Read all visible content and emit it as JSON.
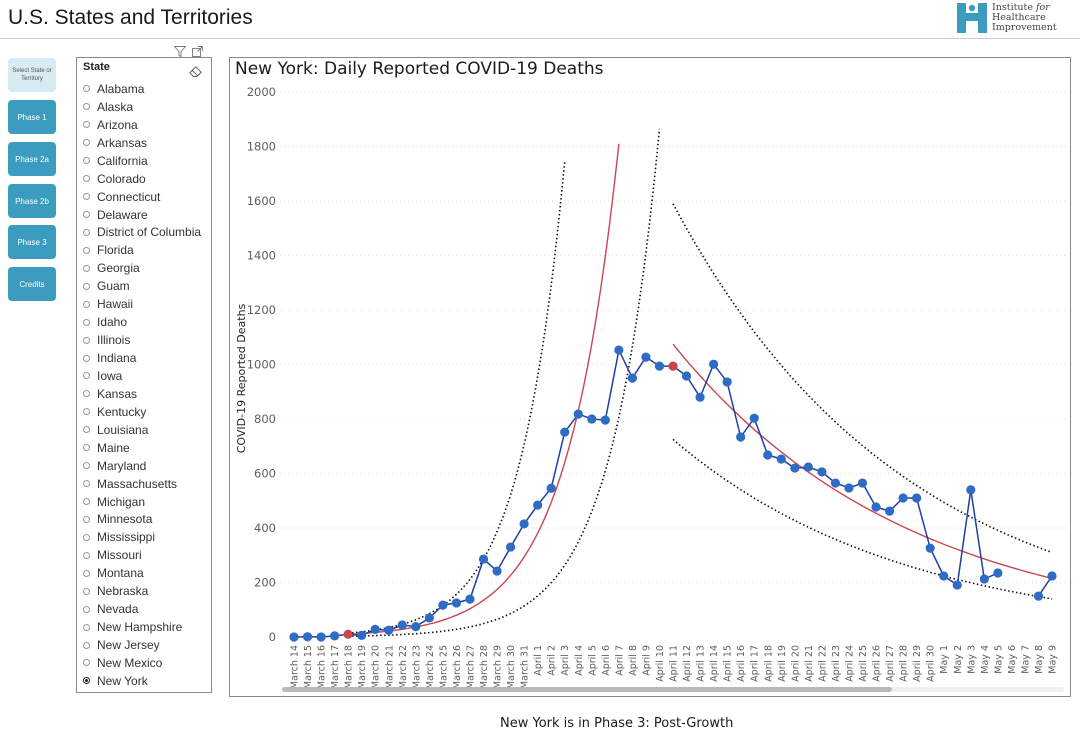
{
  "header": {
    "title": "U.S. States and Territories",
    "logo": {
      "line1": "Institute",
      "line1_italic": "for",
      "line2": "Healthcare",
      "line3": "Improvement",
      "color": "#3b9cbf"
    }
  },
  "nav": {
    "buttons": [
      {
        "label": "Select State or Territory",
        "style": "light"
      },
      {
        "label": "Phase 1"
      },
      {
        "label": "Phase 2a"
      },
      {
        "label": "Phase 2b"
      },
      {
        "label": "Phase 3"
      },
      {
        "label": "Credits"
      }
    ]
  },
  "slicer": {
    "header": "State",
    "icons": [
      "filter-icon",
      "focus-mode-icon",
      "eraser-icon"
    ],
    "items": [
      {
        "label": "Alabama",
        "checked": false
      },
      {
        "label": "Alaska",
        "checked": false
      },
      {
        "label": "Arizona",
        "checked": false
      },
      {
        "label": "Arkansas",
        "checked": false
      },
      {
        "label": "California",
        "checked": false
      },
      {
        "label": "Colorado",
        "checked": false
      },
      {
        "label": "Connecticut",
        "checked": false
      },
      {
        "label": "Delaware",
        "checked": false
      },
      {
        "label": "District of Columbia",
        "checked": false
      },
      {
        "label": "Florida",
        "checked": false
      },
      {
        "label": "Georgia",
        "checked": false
      },
      {
        "label": "Guam",
        "checked": false
      },
      {
        "label": "Hawaii",
        "checked": false
      },
      {
        "label": "Idaho",
        "checked": false
      },
      {
        "label": "Illinois",
        "checked": false
      },
      {
        "label": "Indiana",
        "checked": false
      },
      {
        "label": "Iowa",
        "checked": false
      },
      {
        "label": "Kansas",
        "checked": false
      },
      {
        "label": "Kentucky",
        "checked": false
      },
      {
        "label": "Louisiana",
        "checked": false
      },
      {
        "label": "Maine",
        "checked": false
      },
      {
        "label": "Maryland",
        "checked": false
      },
      {
        "label": "Massachusetts",
        "checked": false
      },
      {
        "label": "Michigan",
        "checked": false
      },
      {
        "label": "Minnesota",
        "checked": false
      },
      {
        "label": "Mississippi",
        "checked": false
      },
      {
        "label": "Missouri",
        "checked": false
      },
      {
        "label": "Montana",
        "checked": false
      },
      {
        "label": "Nebraska",
        "checked": false
      },
      {
        "label": "Nevada",
        "checked": false
      },
      {
        "label": "New Hampshire",
        "checked": false
      },
      {
        "label": "New Jersey",
        "checked": false
      },
      {
        "label": "New Mexico",
        "checked": false
      },
      {
        "label": "New York",
        "checked": true
      }
    ]
  },
  "footer": {
    "status": "New York is in Phase 3: Post-Growth"
  },
  "chart_data": {
    "type": "line",
    "title": "New York: Daily Reported COVID-19 Deaths",
    "xlabel": "",
    "ylabel": "COVID-19 Reported Deaths",
    "ylim": [
      0,
      2000
    ],
    "yticks": [
      0,
      200,
      400,
      600,
      800,
      1000,
      1200,
      1400,
      1600,
      1800,
      2000
    ],
    "grid": true,
    "colors": {
      "series": "#1f3fa3",
      "marker": "#2e6bc4",
      "highlight": "#c8474f",
      "fit": "#c8474f",
      "limits": "#111111"
    },
    "categories": [
      "March 14",
      "March 15",
      "March 16",
      "March 17",
      "March 18",
      "March 19",
      "March 20",
      "March 21",
      "March 22",
      "March 23",
      "March 24",
      "March 25",
      "March 26",
      "March 27",
      "March 28",
      "March 29",
      "March 30",
      "March 31",
      "April 1",
      "April 2",
      "April 3",
      "April 4",
      "April 5",
      "April 6",
      "April 7",
      "April 8",
      "April 9",
      "April 10",
      "April 11",
      "April 12",
      "April 13",
      "April 14",
      "April 15",
      "April 16",
      "April 17",
      "April 18",
      "April 19",
      "April 20",
      "April 21",
      "April 22",
      "April 23",
      "April 24",
      "April 25",
      "April 26",
      "April 27",
      "April 28",
      "April 29",
      "April 30",
      "May 1",
      "May 2",
      "May 3",
      "May 4",
      "May 5",
      "May 6",
      "May 7",
      "May 8",
      "May 9"
    ],
    "series": [
      {
        "name": "Daily Reported Deaths",
        "values": [
          0,
          1,
          0,
          4,
          10,
          6,
          28,
          25,
          44,
          38,
          70,
          117,
          125,
          139,
          286,
          242,
          330,
          415,
          484,
          546,
          752,
          818,
          800,
          796,
          1053,
          950,
          1027,
          994,
          994,
          958,
          880,
          1001,
          936,
          734,
          803,
          668,
          653,
          620,
          624,
          606,
          565,
          547,
          565,
          477,
          462,
          510,
          510,
          326,
          224,
          191,
          540,
          213,
          235,
          null,
          null,
          150,
          224
        ],
        "highlight_points": [
          "March 18",
          "April 11"
        ]
      }
    ],
    "fits": [
      {
        "name": "Growth phase fit",
        "style": "solid",
        "start": "March 18",
        "end": "April 7",
        "start_value": 10,
        "end_value": 1810
      },
      {
        "name": "Growth upper limit",
        "style": "dotted",
        "start": "March 18",
        "end": "April 3",
        "start_value": 14,
        "end_value": 1745
      },
      {
        "name": "Growth lower limit",
        "style": "dotted",
        "start": "March 18",
        "end": "April 10",
        "start_value": 3,
        "end_value": 1865
      },
      {
        "name": "Post-growth fit",
        "style": "solid",
        "start": "April 11",
        "end": "May 9",
        "start_value": 1075,
        "end_value": 215
      },
      {
        "name": "Post-growth upper limit",
        "style": "dotted",
        "start": "April 11",
        "end": "May 9",
        "start_value": 1590,
        "end_value": 310
      },
      {
        "name": "Post-growth lower limit",
        "style": "dotted",
        "start": "April 11",
        "end": "May 9",
        "start_value": 725,
        "end_value": 140
      }
    ]
  }
}
